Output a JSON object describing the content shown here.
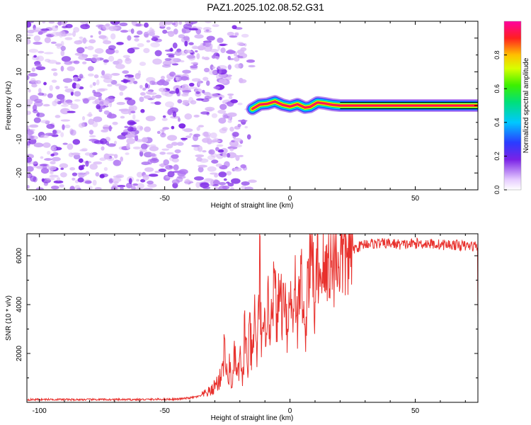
{
  "page_title": "PAZ1.2025.102.08.52.G31",
  "colors": {
    "axis": "#000000",
    "snr_line": "#e8302c",
    "speckle_light": "#d9b8f7",
    "speckle_mid": "#b074f2",
    "speckle_dark": "#7a22e6",
    "background": "#ffffff"
  },
  "chart_data": [
    {
      "type": "heatmap",
      "title": "PAZ1.2025.102.08.52.G31",
      "xlabel": "Height of straight line (km)",
      "ylabel": "Frequency (Hz)",
      "xlim": [
        -105,
        75
      ],
      "ylim": [
        -25,
        25
      ],
      "x_ticks": [
        -100,
        -50,
        0,
        50
      ],
      "x_tick_labels": [
        "-100",
        "-50",
        "0",
        "50"
      ],
      "y_ticks": [
        -20,
        -10,
        0,
        10,
        20
      ],
      "y_tick_labels": [
        "-20",
        "-10",
        "0",
        "10",
        "20"
      ],
      "grid": false,
      "noise_region_x": [
        -105,
        -15
      ],
      "signal_band": {
        "x_start": -15,
        "x_end": 75,
        "center_frequency_hz": 0,
        "ridge_points": [
          [
            -15,
            -1
          ],
          [
            -12,
            0.3
          ],
          [
            -9,
            0.5
          ],
          [
            -6,
            1.2
          ],
          [
            -3,
            0.2
          ],
          [
            0,
            -0.3
          ],
          [
            3,
            0.4
          ],
          [
            6,
            -0.6
          ],
          [
            8,
            -0.4
          ],
          [
            11,
            0.9
          ],
          [
            14,
            0.6
          ],
          [
            17,
            0.2
          ],
          [
            20,
            0.0
          ],
          [
            75,
            0.0
          ]
        ]
      },
      "colorbar": {
        "label": "Normalized spectral amplitude",
        "range": [
          0,
          1
        ],
        "ticks": [
          0.0,
          0.2,
          0.4,
          0.6,
          0.8
        ],
        "tick_labels": [
          "0.0",
          "0.2",
          "0.4",
          "0.6",
          "0.8"
        ],
        "placement": "right"
      }
    },
    {
      "type": "line",
      "xlabel": "Height of straight line (km)",
      "ylabel": "SNR (10 * v/v)",
      "xlim": [
        -105,
        75
      ],
      "ylim": [
        0,
        6900
      ],
      "x_ticks": [
        -100,
        -50,
        0,
        50
      ],
      "x_tick_labels": [
        "-100",
        "-50",
        "0",
        "50"
      ],
      "y_ticks": [
        2000,
        4000,
        6000
      ],
      "y_tick_labels": [
        "2000",
        "4000",
        "6000"
      ],
      "grid": false,
      "series": [
        {
          "color": "#e8302c",
          "x": [
            -105,
            -95,
            -85,
            -75,
            -65,
            -55,
            -45,
            -40,
            -36,
            -33,
            -31,
            -30,
            -28,
            -26,
            -25,
            -24,
            -23,
            -22,
            -21,
            -20,
            -19,
            -18,
            -17,
            -16,
            -15,
            -14,
            -13,
            -12,
            -11,
            -10,
            -9,
            -8,
            -7,
            -6,
            -5,
            -4,
            -3,
            -2,
            -1,
            0,
            1,
            2,
            3,
            4,
            5,
            6,
            7,
            8,
            9,
            10,
            11,
            12,
            13,
            14,
            15,
            16,
            17,
            18,
            19,
            20,
            22,
            24,
            26,
            28,
            30,
            35,
            40,
            45,
            50,
            55,
            60,
            65,
            70,
            75
          ],
          "y": [
            110,
            120,
            110,
            115,
            110,
            120,
            130,
            180,
            250,
            400,
            500,
            700,
            900,
            2200,
            800,
            1500,
            600,
            2000,
            900,
            1800,
            700,
            3200,
            1200,
            2800,
            1500,
            3600,
            1800,
            5500,
            2000,
            2800,
            4200,
            3000,
            4800,
            4400,
            3200,
            4900,
            3600,
            5200,
            2600,
            4600,
            3500,
            5300,
            3000,
            5000,
            4800,
            2200,
            5300,
            5500,
            6400,
            3200,
            6300,
            5000,
            6100,
            4800,
            5800,
            6000,
            5400,
            6200,
            5800,
            6000,
            6100,
            6300,
            6300,
            6400,
            6500,
            6500,
            6500,
            6450,
            6500,
            6500,
            6450,
            6450,
            6400,
            6400
          ]
        }
      ]
    }
  ]
}
